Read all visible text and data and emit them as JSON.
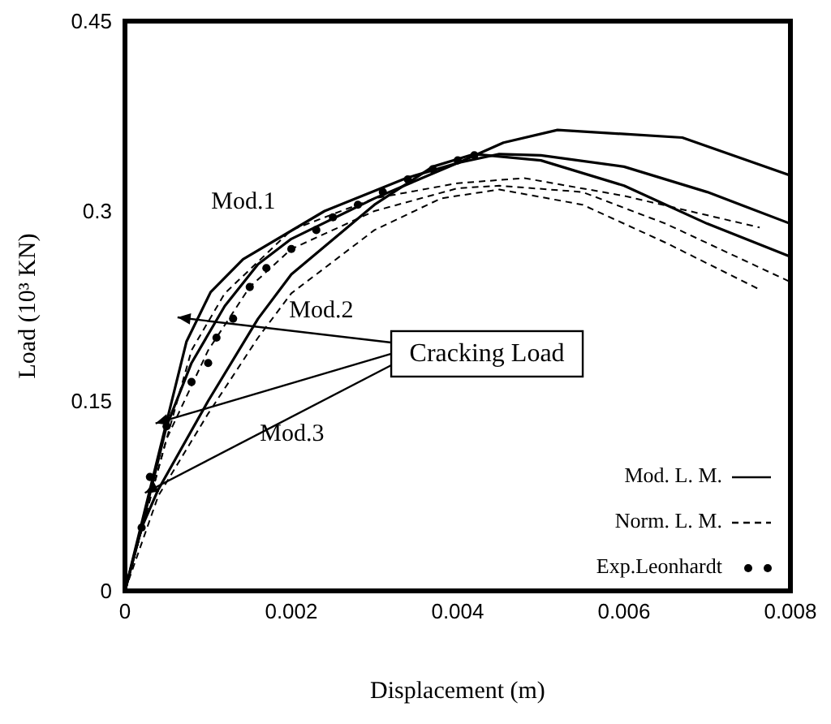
{
  "chart_data": {
    "type": "line",
    "xlabel": "Displacement (m)",
    "ylabel": "Load (10³ KN)",
    "xlim": [
      0,
      0.008
    ],
    "xticks": [
      0,
      0.002,
      0.004,
      0.006,
      0.008
    ],
    "ylim": [
      0,
      0.45
    ],
    "yticks": [
      0,
      0.15,
      0.3,
      0.45
    ],
    "grid": false,
    "legend": "bottom right",
    "annotations": [
      "Mod.1",
      "Mod.2",
      "Mod.3",
      "Cracking Load"
    ],
    "series": [
      {
        "name": "Mod. L. M.",
        "line_style": "solid",
        "color": "#000000",
        "x": [
          0,
          0.00045,
          0.00074,
          0.00103,
          0.00142,
          0.0024,
          0.00338,
          0.004,
          0.00455,
          0.0052,
          0.0067,
          0.008
        ],
        "values": [
          0,
          0.12,
          0.197,
          0.236,
          0.262,
          0.3,
          0.326,
          0.338,
          0.354,
          0.364,
          0.358,
          0.328
        ]
      },
      {
        "line_style": "solid",
        "color": "#000000",
        "x": [
          0,
          0.0002,
          0.0005,
          0.0008,
          0.0012,
          0.0016,
          0.002,
          0.003,
          0.004,
          0.0045,
          0.005,
          0.006,
          0.007,
          0.008
        ],
        "values": [
          0,
          0.05,
          0.13,
          0.18,
          0.225,
          0.258,
          0.278,
          0.31,
          0.338,
          0.345,
          0.344,
          0.335,
          0.315,
          0.29
        ]
      },
      {
        "line_style": "solid",
        "color": "#000000",
        "x": [
          0,
          0.0002,
          0.0004,
          0.001,
          0.0016,
          0.002,
          0.003,
          0.0037,
          0.0042,
          0.005,
          0.006,
          0.007,
          0.008
        ],
        "values": [
          0,
          0.05,
          0.08,
          0.15,
          0.215,
          0.25,
          0.305,
          0.335,
          0.345,
          0.34,
          0.32,
          0.29,
          0.264
        ]
      },
      {
        "name": "Norm. L. M.",
        "line_style": "dashed",
        "color": "#000000",
        "x": [
          0,
          0.0005,
          0.0008,
          0.0012,
          0.002,
          0.003,
          0.004,
          0.0048,
          0.006,
          0.00763
        ],
        "values": [
          0,
          0.12,
          0.19,
          0.235,
          0.285,
          0.31,
          0.322,
          0.326,
          0.312,
          0.287
        ]
      },
      {
        "line_style": "dashed",
        "color": "#000000",
        "x": [
          0,
          0.0005,
          0.001,
          0.0015,
          0.002,
          0.003,
          0.004,
          0.0045,
          0.0055,
          0.0065,
          0.008
        ],
        "values": [
          0,
          0.12,
          0.19,
          0.24,
          0.27,
          0.3,
          0.318,
          0.32,
          0.315,
          0.29,
          0.244
        ]
      },
      {
        "line_style": "dashed",
        "color": "#000000",
        "x": [
          0,
          0.0004,
          0.001,
          0.0016,
          0.002,
          0.003,
          0.0038,
          0.0045,
          0.0055,
          0.0065,
          0.00763
        ],
        "values": [
          0,
          0.075,
          0.14,
          0.2,
          0.235,
          0.285,
          0.31,
          0.317,
          0.305,
          0.275,
          0.238
        ]
      },
      {
        "name": "Exp.Leonhardt",
        "type": "scatter",
        "marker": "circle",
        "color": "#000000",
        "x": [
          0.0002,
          0.0003,
          0.0005,
          0.0008,
          0.001,
          0.0011,
          0.0013,
          0.0015,
          0.0017,
          0.002,
          0.0023,
          0.0025,
          0.0028,
          0.0031,
          0.0034,
          0.0037,
          0.004,
          0.0042
        ],
        "values": [
          0.05,
          0.09,
          0.13,
          0.165,
          0.18,
          0.2,
          0.215,
          0.24,
          0.255,
          0.27,
          0.285,
          0.295,
          0.305,
          0.315,
          0.325,
          0.333,
          0.34,
          0.344
        ]
      }
    ]
  }
}
